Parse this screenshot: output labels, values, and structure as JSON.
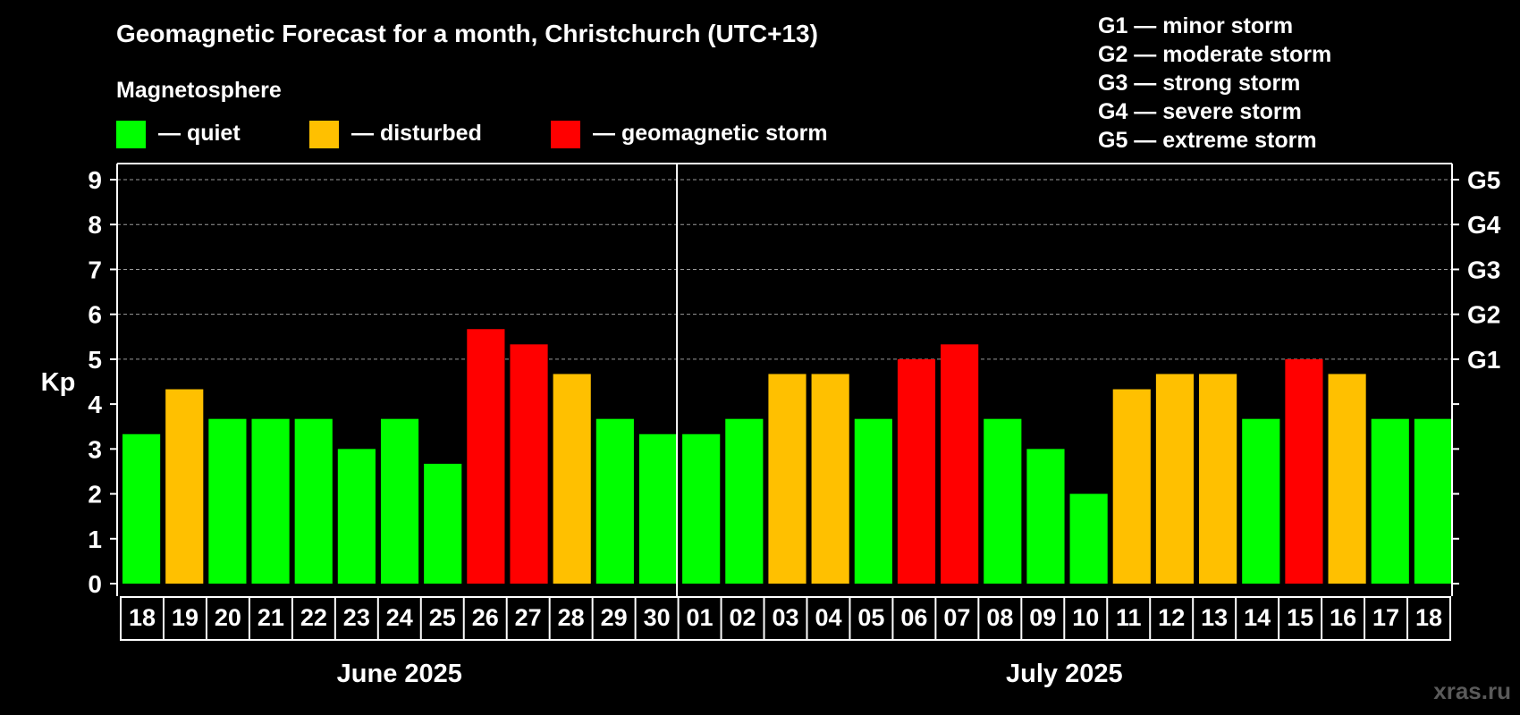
{
  "chart_data": {
    "type": "bar",
    "title": "Geomagnetic Forecast for a month, Christchurch (UTC+13)",
    "legend_title": "Magnetosphere",
    "legend": [
      {
        "label": "— quiet",
        "color": "#00ff00"
      },
      {
        "label": "— disturbed",
        "color": "#ffc000"
      },
      {
        "label": "— geomagnetic storm",
        "color": "#ff0000"
      }
    ],
    "storm_scale": [
      "G1 — minor storm",
      "G2 — moderate storm",
      "G3 — strong storm",
      "G4 — severe storm",
      "G5 — extreme storm"
    ],
    "ylabel": "Kp",
    "ylim": [
      0,
      9
    ],
    "yticks": [
      "0",
      "1",
      "2",
      "3",
      "4",
      "5",
      "6",
      "7",
      "8",
      "9"
    ],
    "right_labels": [
      {
        "label": "G1",
        "kp": 5
      },
      {
        "label": "G2",
        "kp": 6
      },
      {
        "label": "G3",
        "kp": 7
      },
      {
        "label": "G4",
        "kp": 8
      },
      {
        "label": "G5",
        "kp": 9
      }
    ],
    "categories": [
      "18",
      "19",
      "20",
      "21",
      "22",
      "23",
      "24",
      "25",
      "26",
      "27",
      "28",
      "29",
      "30",
      "01",
      "02",
      "03",
      "04",
      "05",
      "06",
      "07",
      "08",
      "09",
      "10",
      "11",
      "12",
      "13",
      "14",
      "15",
      "16",
      "17",
      "18"
    ],
    "values": [
      3.33,
      4.33,
      3.67,
      3.67,
      3.67,
      3.0,
      3.67,
      2.67,
      5.67,
      5.33,
      4.67,
      3.67,
      3.33,
      3.33,
      3.67,
      4.67,
      4.67,
      3.67,
      5.0,
      5.33,
      3.67,
      3.0,
      2.0,
      4.33,
      4.67,
      4.67,
      3.67,
      5.0,
      4.67,
      3.67,
      3.67
    ],
    "status": [
      "quiet",
      "disturbed",
      "quiet",
      "quiet",
      "quiet",
      "quiet",
      "quiet",
      "quiet",
      "storm",
      "storm",
      "disturbed",
      "quiet",
      "quiet",
      "quiet",
      "quiet",
      "disturbed",
      "disturbed",
      "quiet",
      "storm",
      "storm",
      "quiet",
      "quiet",
      "quiet",
      "disturbed",
      "disturbed",
      "disturbed",
      "quiet",
      "storm",
      "disturbed",
      "quiet",
      "quiet"
    ],
    "status_colors": {
      "quiet": "#00ff00",
      "disturbed": "#ffc000",
      "storm": "#ff0000"
    },
    "months": [
      {
        "label": "June 2025",
        "days": 13
      },
      {
        "label": "July 2025",
        "days": 18
      }
    ],
    "grid": true
  },
  "watermark": "xras.ru"
}
